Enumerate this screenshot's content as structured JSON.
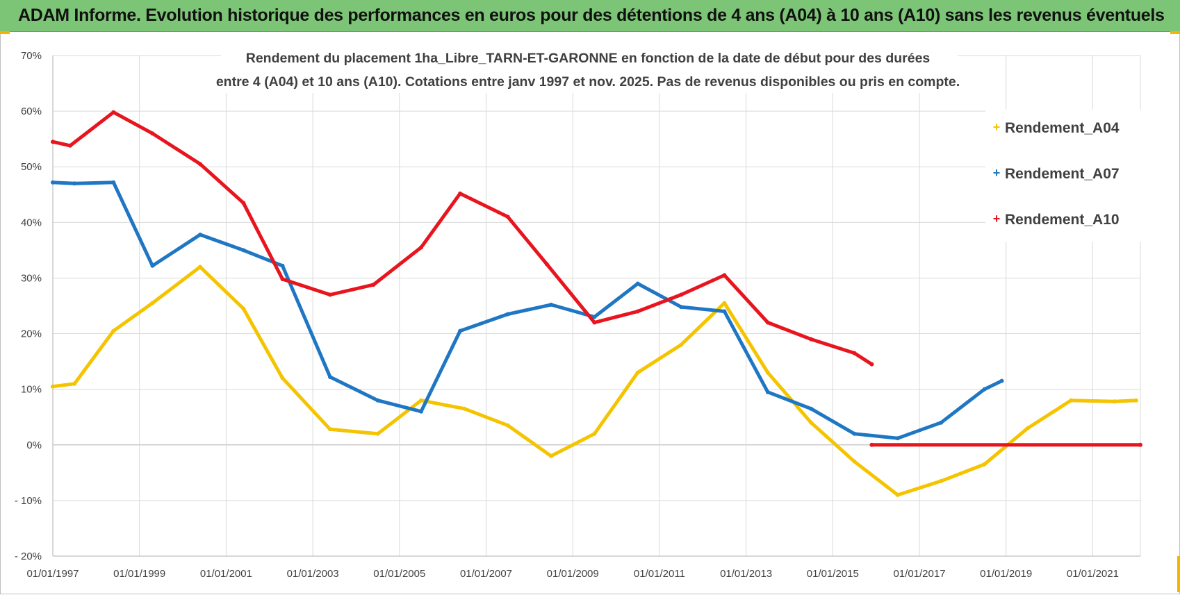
{
  "header": {
    "title": "ADAM Informe. Evolution historique des performances en euros pour des détentions de 4 ans (A04) à 10 ans (A10) sans les revenus éventuels"
  },
  "chart_data": {
    "type": "line",
    "title_lines": [
      "Rendement du placement 1ha_Libre_TARN-ET-GARONNE en fonction de la date de début pour des durées",
      "entre 4 (A04) et 10 ans (A10). Cotations entre janv 1997 et nov. 2025. Pas de revenus disponibles ou pris en compte."
    ],
    "y_ticks": [
      "70%",
      "60%",
      "50%",
      "40%",
      "30%",
      "20%",
      "10%",
      "0%",
      "- 10%",
      "- 20%"
    ],
    "y_tick_values": [
      70,
      60,
      50,
      40,
      30,
      20,
      10,
      0,
      -10,
      -20
    ],
    "x_ticks": [
      "01/01/1997",
      "01/01/1999",
      "01/01/2001",
      "01/01/2003",
      "01/01/2005",
      "01/01/2007",
      "01/01/2009",
      "01/01/2011",
      "01/01/2013",
      "01/01/2015",
      "01/01/2017",
      "01/01/2019",
      "01/01/2021"
    ],
    "x_tick_values": [
      1997,
      1999,
      2001,
      2003,
      2005,
      2007,
      2009,
      2011,
      2013,
      2015,
      2017,
      2019,
      2021
    ],
    "xlim": [
      1997,
      2022.1
    ],
    "ylim": [
      -20,
      70
    ],
    "grid": true,
    "legend_position": "top-right",
    "series": [
      {
        "name": "Rendement_A04",
        "color": "#f5c400",
        "points": [
          [
            1997.0,
            10.5
          ],
          [
            1997.5,
            11
          ],
          [
            1998.4,
            20.5
          ],
          [
            1999.3,
            25.5
          ],
          [
            2000.4,
            32
          ],
          [
            2001.4,
            24.5
          ],
          [
            2002.3,
            12
          ],
          [
            2003.4,
            2.8
          ],
          [
            2004.5,
            2
          ],
          [
            2005.5,
            8
          ],
          [
            2006.5,
            6.5
          ],
          [
            2007.5,
            3.5
          ],
          [
            2008.5,
            -2
          ],
          [
            2009.5,
            2
          ],
          [
            2010.5,
            13
          ],
          [
            2011.5,
            18
          ],
          [
            2012.5,
            25.5
          ],
          [
            2013.5,
            13
          ],
          [
            2014.5,
            4
          ],
          [
            2015.5,
            -3
          ],
          [
            2016.5,
            -9
          ],
          [
            2017.5,
            -6.5
          ],
          [
            2018.5,
            -3.5
          ],
          [
            2019.5,
            3
          ],
          [
            2020.5,
            8
          ],
          [
            2021.5,
            7.8
          ],
          [
            2022.0,
            8
          ]
        ]
      },
      {
        "name": "Rendement_A07",
        "color": "#1f77c4",
        "points": [
          [
            1997.0,
            47.2
          ],
          [
            1997.5,
            47
          ],
          [
            1998.4,
            47.2
          ],
          [
            1999.3,
            32.2
          ],
          [
            2000.4,
            37.8
          ],
          [
            2001.4,
            35
          ],
          [
            2002.3,
            32.2
          ],
          [
            2003.4,
            12.2
          ],
          [
            2004.5,
            8
          ],
          [
            2005.5,
            6
          ],
          [
            2006.4,
            20.5
          ],
          [
            2007.5,
            23.5
          ],
          [
            2008.5,
            25.2
          ],
          [
            2009.5,
            23
          ],
          [
            2010.5,
            29
          ],
          [
            2011.5,
            24.8
          ],
          [
            2012.5,
            24
          ],
          [
            2013.5,
            9.5
          ],
          [
            2014.5,
            6.5
          ],
          [
            2015.5,
            2
          ],
          [
            2016.5,
            1.2
          ],
          [
            2017.5,
            4
          ],
          [
            2018.5,
            10
          ],
          [
            2018.9,
            11.5
          ]
        ]
      },
      {
        "name": "Rendement_A10",
        "color": "#e8141e",
        "points": [
          [
            1997.0,
            54.5
          ],
          [
            1997.4,
            53.8
          ],
          [
            1998.4,
            59.8
          ],
          [
            1999.3,
            56
          ],
          [
            2000.4,
            50.5
          ],
          [
            2001.4,
            43.5
          ],
          [
            2002.3,
            29.8
          ],
          [
            2003.4,
            27
          ],
          [
            2004.4,
            28.8
          ],
          [
            2005.5,
            35.5
          ],
          [
            2006.4,
            45.2
          ],
          [
            2007.5,
            41
          ],
          [
            2008.4,
            32.5
          ],
          [
            2009.5,
            22
          ],
          [
            2010.5,
            24
          ],
          [
            2011.5,
            27
          ],
          [
            2012.5,
            30.5
          ],
          [
            2013.5,
            22
          ],
          [
            2014.5,
            19
          ],
          [
            2015.5,
            16.5
          ],
          [
            2015.9,
            14.5
          ]
        ]
      },
      {
        "name": "Rendement_A10_zero",
        "color": "#e8141e",
        "points": [
          [
            2015.9,
            0
          ],
          [
            2022.1,
            0
          ]
        ]
      }
    ],
    "legend": [
      {
        "label": "Rendement_A04",
        "color": "#f5c400"
      },
      {
        "label": "Rendement_A07",
        "color": "#1f77c4"
      },
      {
        "label": "Rendement_A10",
        "color": "#e8141e"
      }
    ]
  }
}
